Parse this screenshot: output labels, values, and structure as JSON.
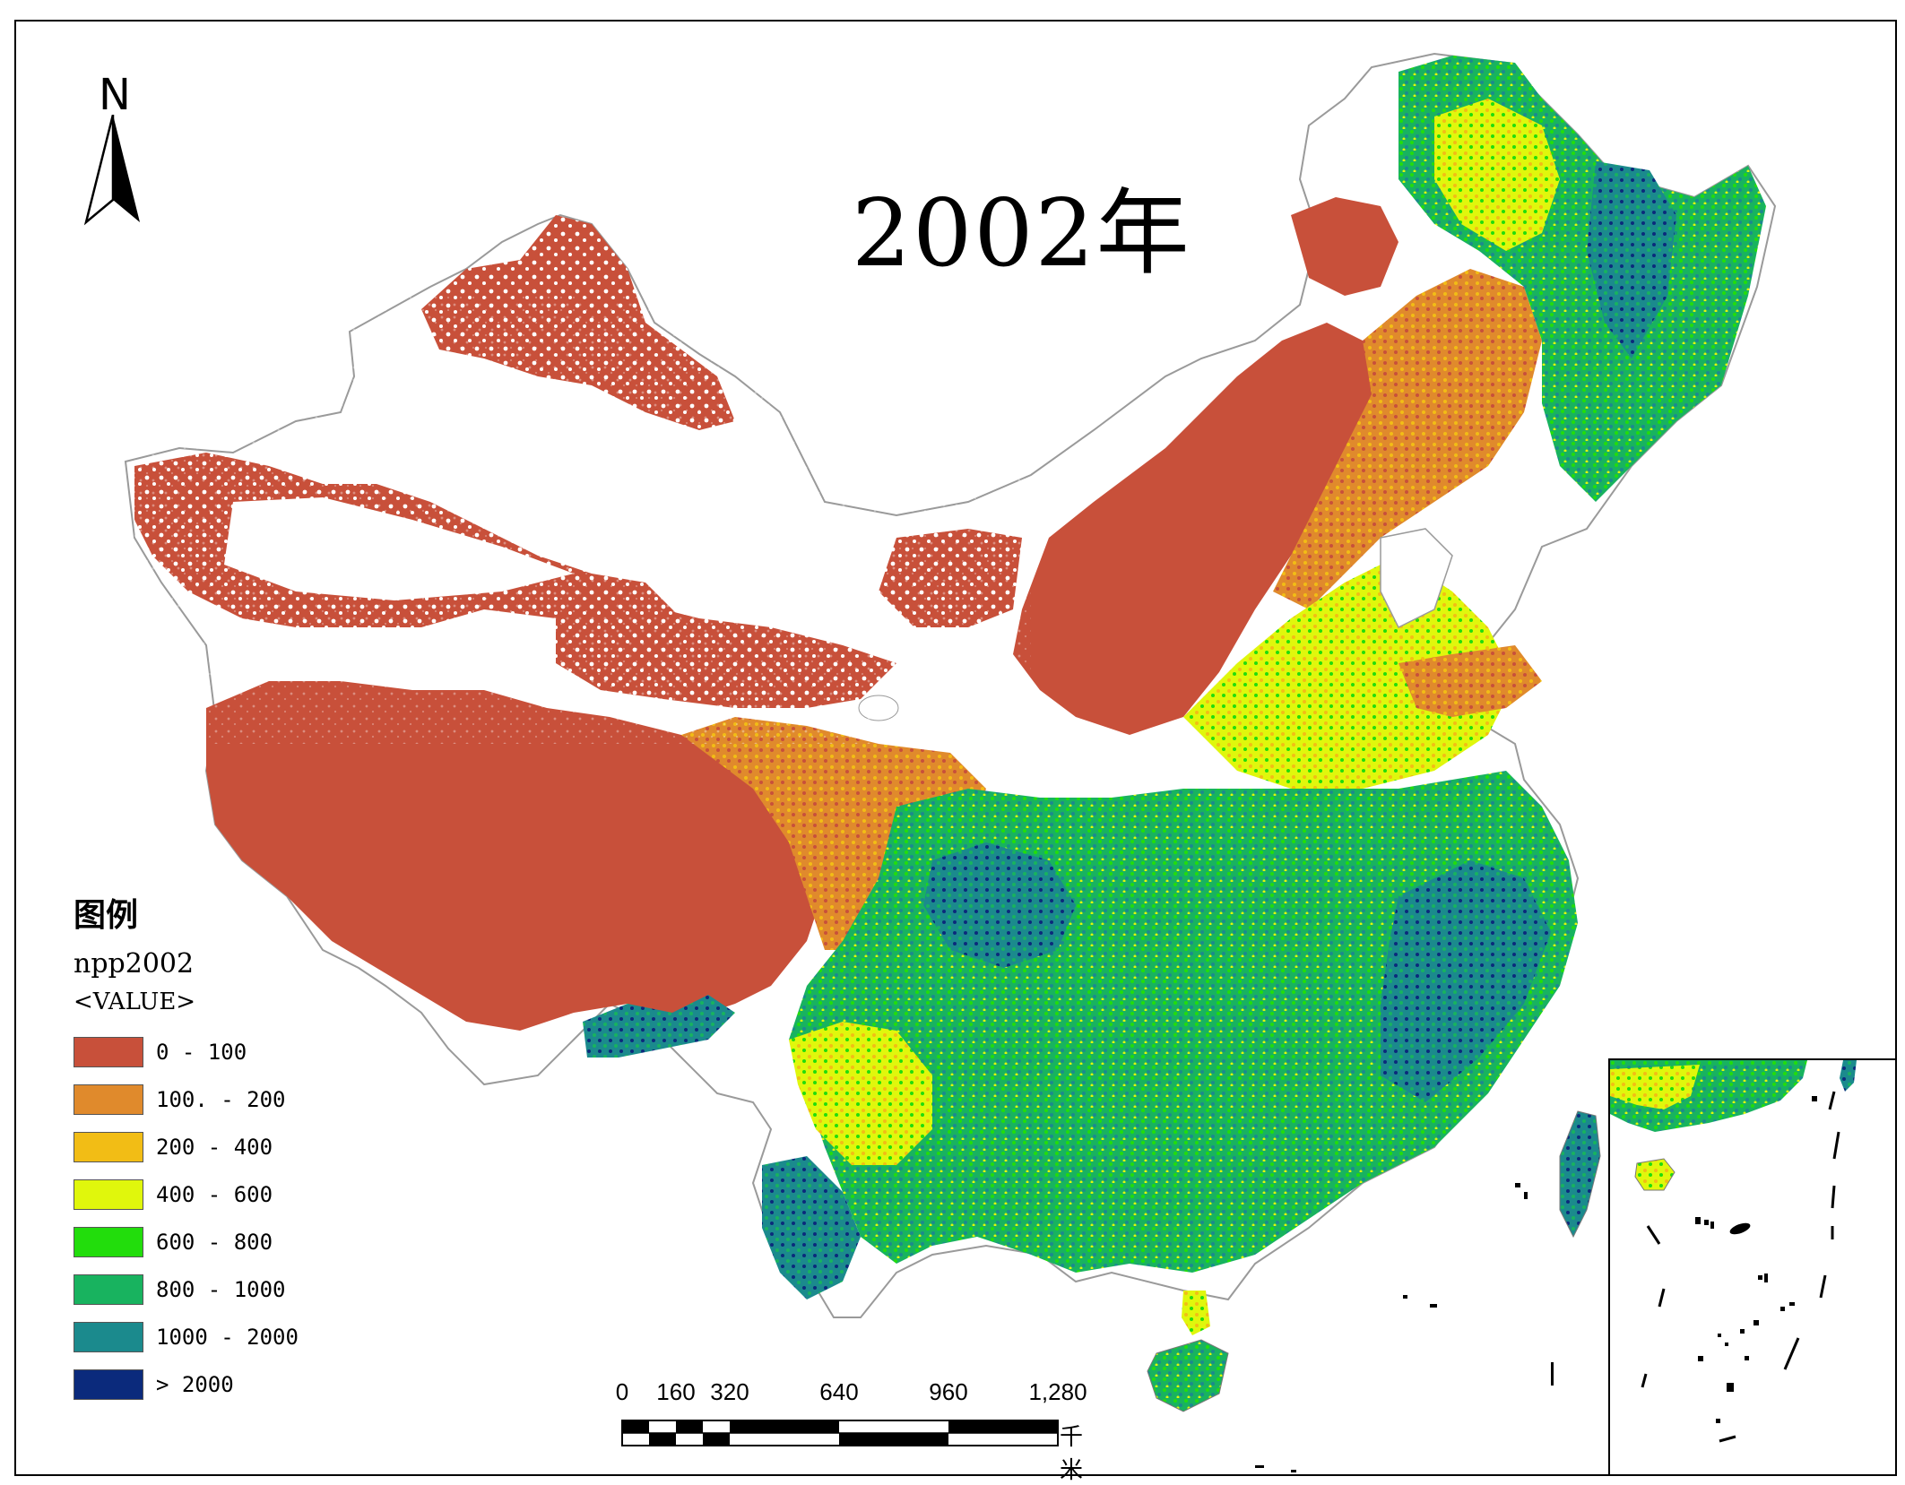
{
  "map": {
    "title": "2002年",
    "north_label": "N",
    "legend": {
      "heading": "图例",
      "layer": "npp2002",
      "field": "<VALUE>",
      "classes": [
        {
          "label": "0 - 100",
          "color": "#c8503a"
        },
        {
          "label": "100. - 200",
          "color": "#e08a2c"
        },
        {
          "label": "200 - 400",
          "color": "#f2bd15"
        },
        {
          "label": "400 - 600",
          "color": "#e0f70c"
        },
        {
          "label": "600 - 800",
          "color": "#22dd0c"
        },
        {
          "label": "800 - 1000",
          "color": "#18b35f"
        },
        {
          "label": "1000 - 2000",
          "color": "#1b8a8d"
        },
        {
          "label": "> 2000",
          "color": "#0b2a7c"
        }
      ]
    },
    "scale_bar": {
      "labels": [
        "0",
        "160",
        "320",
        "640",
        "960",
        "1,280"
      ],
      "unit": "千米"
    }
  }
}
